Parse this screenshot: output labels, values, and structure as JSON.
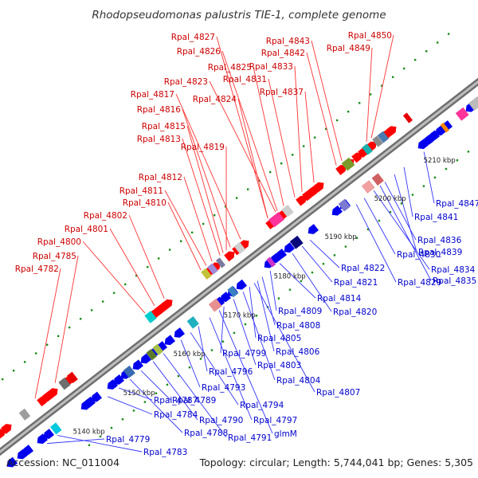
{
  "title": "Rhodopseudomonas palustris TIE-1, complete genome",
  "footer": {
    "accession": "Accession: NC_011004",
    "info": "Topology: circular; Length: 5,744,041 bp; Genes: 5,305"
  },
  "colors": {
    "backbone": "#888888",
    "forward_gene": "#ff0000",
    "reverse_gene": "#0000ee",
    "label_forward": "#cc0000",
    "label_reverse": "#0000cc",
    "leader_forward": "#ff3333",
    "leader_reverse": "#3333ff",
    "dots": "#1a8c1a"
  },
  "ticks": [
    "5140 kbp",
    "5150 kbp",
    "5160 kbp",
    "5170 kbp",
    "5180 kbp",
    "5190 kbp",
    "5200 kbp",
    "5210 kbp"
  ],
  "forward_labels": [
    "Rpal_4782",
    "Rpal_4785",
    "Rpal_4800",
    "Rpal_4801",
    "Rpal_4802",
    "Rpal_4810",
    "Rpal_4811",
    "Rpal_4812",
    "Rpal_4813",
    "Rpal_4819",
    "Rpal_4815",
    "Rpal_4816",
    "Rpal_4817",
    "Rpal_4824",
    "Rpal_4823",
    "Rpal_4825",
    "Rpal_4831",
    "Rpal_4826",
    "Rpal_4833",
    "Rpal_4837",
    "Rpal_4827",
    "Rpal_4842",
    "Rpal_4843",
    "Rpal_4849",
    "Rpal_4850"
  ],
  "reverse_labels": [
    "Rpal_4779",
    "Rpal_4783",
    "Rpal_4784",
    "Rpal_4787",
    "Rpal_4788",
    "Rpal_4789",
    "Rpal_4790",
    "Rpal_4791",
    "Rpal_4793",
    "Rpal_4794",
    "Rpal_4796",
    "Rpal_4797",
    "glmM",
    "Rpal_4799",
    "Rpal_4803",
    "Rpal_4804",
    "Rpal_4805",
    "Rpal_4806",
    "Rpal_4807",
    "Rpal_4808",
    "Rpal_4809",
    "Rpal_4814",
    "Rpal_4820",
    "Rpal_4821",
    "Rpal_4822",
    "Rpal_4829",
    "Rpal_4830",
    "Rpal_4834",
    "Rpal_4835",
    "Rpal_4836",
    "Rpal_4839",
    "Rpal_4841",
    "Rpal_4847"
  ]
}
